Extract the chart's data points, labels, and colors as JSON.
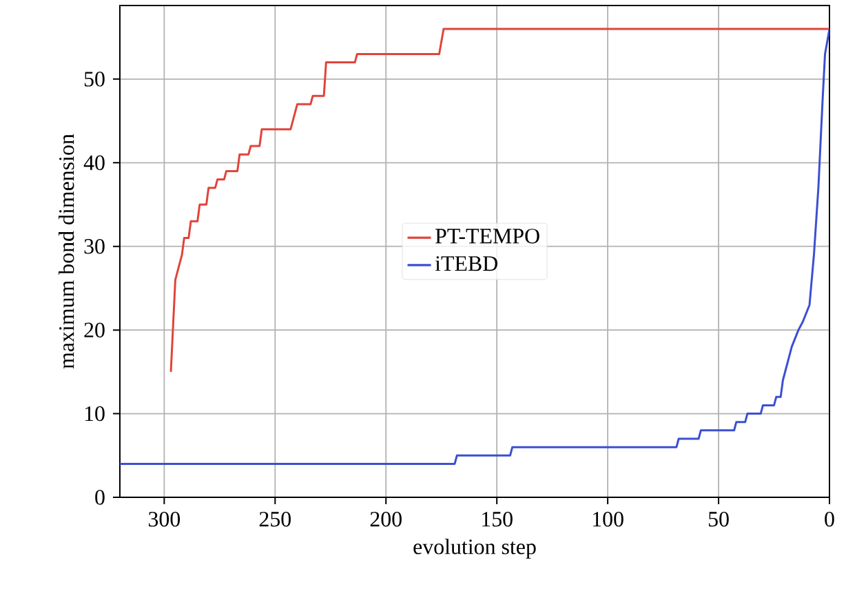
{
  "chart_data": {
    "type": "line",
    "xlabel": "evolution step",
    "ylabel": "maximum bond dimension",
    "xlim": [
      320,
      0
    ],
    "ylim": [
      0,
      58.8
    ],
    "xticks": [
      300,
      250,
      200,
      150,
      100,
      50,
      0
    ],
    "yticks": [
      0,
      10,
      20,
      30,
      40,
      50
    ],
    "grid": true,
    "legend": "center",
    "marker": "none",
    "line_style": "solid",
    "series": [
      {
        "name": "PT-TEMPO",
        "color": "#e0443a",
        "x": [
          297,
          295,
          292,
          291,
          289,
          288,
          285,
          284,
          281,
          280,
          277,
          276,
          273,
          272,
          267,
          266,
          262,
          261,
          257,
          256,
          243,
          240,
          234,
          233,
          228,
          227,
          214,
          213,
          176,
          174,
          0
        ],
        "values": [
          15,
          26,
          29,
          31,
          31,
          33,
          33,
          35,
          35,
          37,
          37,
          38,
          38,
          39,
          39,
          41,
          41,
          42,
          42,
          44,
          44,
          47,
          47,
          48,
          48,
          52,
          52,
          53,
          53,
          56,
          56
        ]
      },
      {
        "name": "iTEBD",
        "color": "#3b4fd2",
        "x": [
          320,
          169,
          168,
          144,
          143,
          69,
          68,
          59,
          58,
          43,
          42,
          38,
          37,
          31,
          30,
          25,
          24,
          22,
          21,
          19,
          17,
          14,
          12,
          9,
          7,
          5,
          3,
          2,
          0
        ],
        "values": [
          4,
          4,
          5,
          5,
          6,
          6,
          7,
          7,
          8,
          8,
          9,
          9,
          10,
          10,
          11,
          11,
          12,
          12,
          14,
          16,
          18,
          20,
          21,
          23,
          29,
          37,
          48,
          53,
          56
        ]
      }
    ]
  }
}
